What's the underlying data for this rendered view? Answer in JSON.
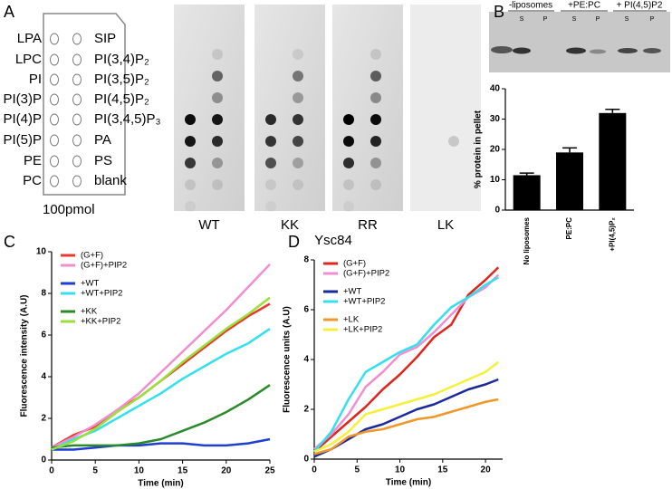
{
  "panel_labels": [
    "A",
    "B",
    "C",
    "D"
  ],
  "lipid_strip": {
    "left_labels": [
      "LPA",
      "LPC",
      "PI",
      "PI(3)P",
      "PI(4)P",
      "PI(5)P",
      "PE",
      "PC"
    ],
    "right_labels": [
      "SIP",
      "PI(3,4)P₂",
      "PI(3,5)P₂",
      "PI(4,5)P₂",
      "PI(3,4,5)P₃",
      "PA",
      "PS",
      "blank"
    ],
    "amount": "100pmol"
  },
  "blots": {
    "labels": [
      "WT",
      "KK",
      "RR",
      "LK"
    ],
    "protein": "Ysc84"
  },
  "gel": {
    "groups": [
      "-liposomes",
      "+PE:PC",
      "+ PI(4,5)P2"
    ],
    "lanes": [
      "S",
      "P",
      "S",
      "P",
      "S",
      "P"
    ]
  },
  "chart_data": [
    {
      "type": "bar",
      "ylabel": "% protein in pellet",
      "categories": [
        "No liposomes",
        "PE:PC",
        "+PI(4,5)P₂"
      ],
      "values": [
        11.5,
        19,
        32
      ],
      "errors": [
        0.7,
        1.5,
        1.2
      ],
      "color": "#000000",
      "ylim": [
        0,
        40
      ],
      "yticks": [
        0,
        10,
        20,
        30,
        40
      ]
    },
    {
      "type": "line",
      "xlabel": "Time (min)",
      "ylabel": "Fluorescence intensity (A.U)",
      "x": [
        0,
        2.5,
        5,
        7.5,
        10,
        12.5,
        15,
        17.5,
        20,
        22.5,
        25
      ],
      "xlim": [
        0,
        25
      ],
      "xticks": [
        0,
        5,
        10,
        15,
        20,
        25
      ],
      "ylim": [
        0,
        10
      ],
      "yticks": [
        0,
        2,
        4,
        6,
        8,
        10
      ],
      "legend": "upper left",
      "series": [
        {
          "name": "(G+F)",
          "color": "#e8392f",
          "values": [
            0.6,
            1.2,
            1.6,
            2.4,
            3.0,
            3.8,
            4.6,
            5.4,
            6.2,
            6.9,
            7.5
          ]
        },
        {
          "name": "(G+F)+PIP2",
          "color": "#f08ed0",
          "values": [
            0.6,
            1.1,
            1.7,
            2.4,
            3.2,
            4.2,
            5.2,
            6.2,
            7.2,
            8.3,
            9.4
          ]
        },
        {
          "name": "+WT",
          "color": "#1f3fd0",
          "values": [
            0.5,
            0.5,
            0.6,
            0.7,
            0.7,
            0.8,
            0.8,
            0.7,
            0.7,
            0.8,
            1.0
          ]
        },
        {
          "name": "+WT+PIP2",
          "color": "#33e0ee",
          "values": [
            0.5,
            1.0,
            1.4,
            2.0,
            2.6,
            3.2,
            3.9,
            4.5,
            5.1,
            5.6,
            6.3
          ]
        },
        {
          "name": "+KK",
          "color": "#2a8a2a",
          "values": [
            0.6,
            0.7,
            0.7,
            0.7,
            0.8,
            1.0,
            1.4,
            1.8,
            2.3,
            2.9,
            3.6
          ]
        },
        {
          "name": "+KK+PIP2",
          "color": "#9ae03a",
          "values": [
            0.5,
            0.9,
            1.5,
            2.3,
            3.0,
            3.8,
            4.7,
            5.5,
            6.3,
            7.0,
            7.8
          ]
        }
      ]
    },
    {
      "type": "line",
      "xlabel": "Time (min)",
      "ylabel": "Fluorescence units (A.U)",
      "x": [
        0,
        2,
        4,
        6,
        8,
        10,
        12,
        14,
        16,
        18,
        20,
        21.5
      ],
      "xlim": [
        0,
        22
      ],
      "xticks": [
        0,
        5,
        10,
        15,
        20
      ],
      "ylim": [
        0,
        8
      ],
      "yticks": [
        0,
        2,
        4,
        6,
        8
      ],
      "legend": "upper left",
      "series": [
        {
          "name": "(G+F)",
          "color": "#e0261c",
          "values": [
            0.3,
            0.9,
            1.5,
            2.1,
            2.8,
            3.4,
            4.1,
            4.9,
            5.4,
            6.6,
            7.2,
            7.7
          ]
        },
        {
          "name": "(G+F)+PIP2",
          "color": "#f08ed0",
          "values": [
            0.4,
            1.0,
            1.8,
            2.9,
            3.5,
            4.2,
            4.5,
            5.1,
            5.8,
            6.5,
            6.9,
            7.4
          ]
        },
        {
          "name": "+WT",
          "color": "#1a2a9c",
          "values": [
            0.1,
            0.4,
            0.8,
            1.2,
            1.4,
            1.7,
            2.0,
            2.2,
            2.5,
            2.8,
            3.0,
            3.2
          ]
        },
        {
          "name": "+WT+PIP2",
          "color": "#33e0ee",
          "values": [
            0.3,
            1.1,
            2.4,
            3.5,
            3.9,
            4.3,
            4.6,
            5.4,
            6.1,
            6.5,
            7.0,
            7.3
          ]
        },
        {
          "name": "+LK",
          "color": "#f0962a",
          "values": [
            0.2,
            0.4,
            0.9,
            1.1,
            1.2,
            1.4,
            1.6,
            1.7,
            1.9,
            2.1,
            2.3,
            2.4
          ]
        },
        {
          "name": "+LK+PIP2",
          "color": "#f5f03a",
          "values": [
            0.3,
            0.6,
            1.1,
            1.8,
            2.0,
            2.2,
            2.4,
            2.6,
            2.9,
            3.2,
            3.5,
            3.9
          ]
        }
      ]
    }
  ]
}
